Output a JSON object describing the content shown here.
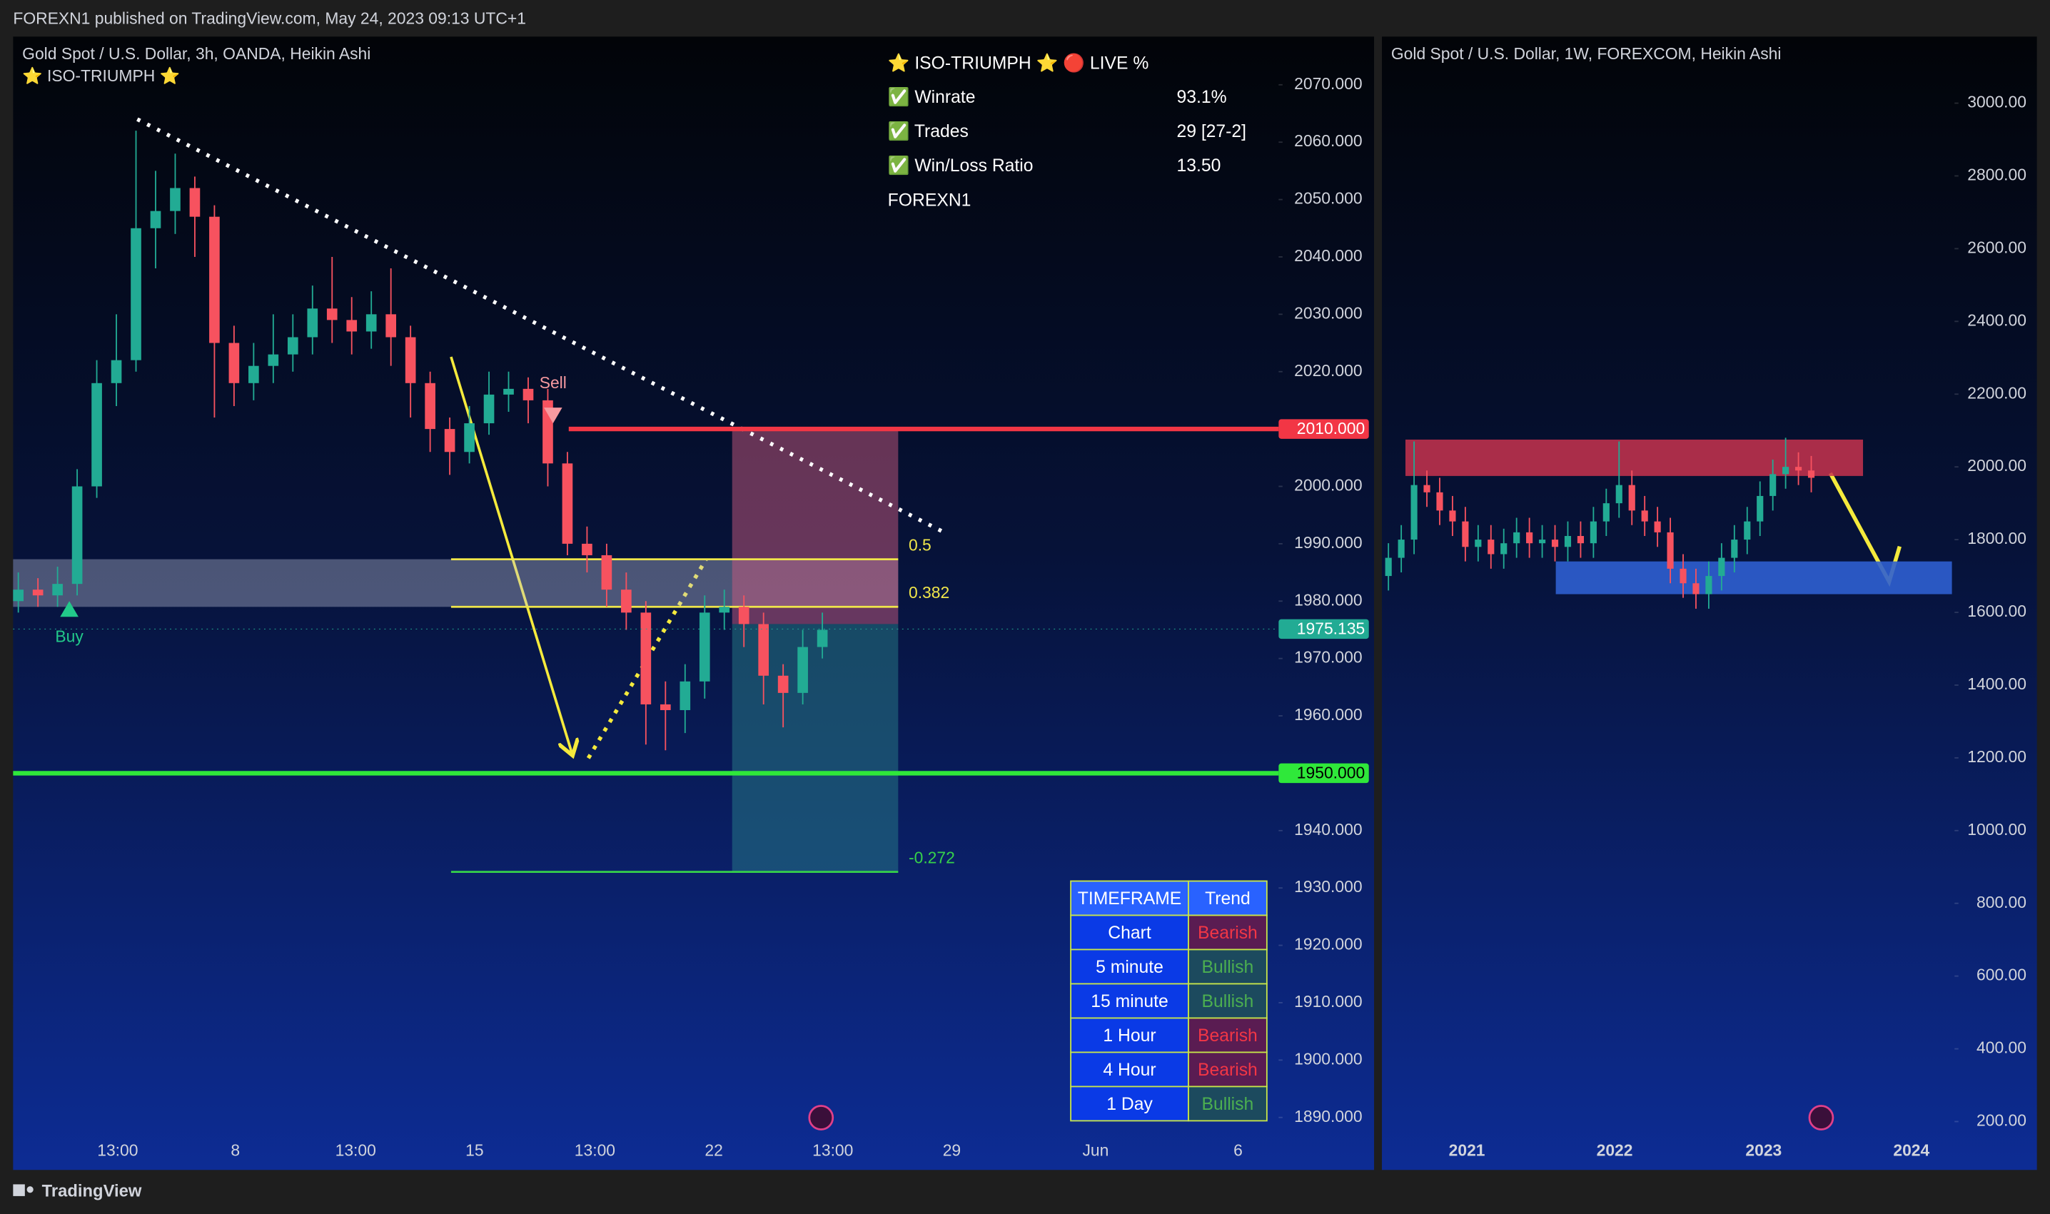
{
  "header": {
    "text": "FOREXN1 published on TradingView.com, May 24, 2023 09:13 UTC+1"
  },
  "footer": {
    "brand": "TradingView"
  },
  "indicator_panel": {
    "title": "⭐ ISO-TRIUMPH ⭐  🔴 LIVE %",
    "rows": [
      {
        "label": "✅ Winrate",
        "value": "93.1%"
      },
      {
        "label": "✅ Trades",
        "value": "29 [27-2]"
      },
      {
        "label": "✅ Win/Loss Ratio",
        "value": "13.50"
      }
    ],
    "footer": "FOREXN1"
  },
  "trend_table": {
    "header": [
      "TIMEFRAME",
      "Trend"
    ],
    "rows": [
      {
        "timeframe": "Chart",
        "trend": "Bearish",
        "color": "#f23645",
        "bg": "#5a1c52"
      },
      {
        "timeframe": "5 minute",
        "trend": "Bullish",
        "color": "#4caf50",
        "bg": "#1c4a5e"
      },
      {
        "timeframe": "15 minute",
        "trend": "Bullish",
        "color": "#4caf50",
        "bg": "#1c4a5e"
      },
      {
        "timeframe": "1 Hour",
        "trend": "Bearish",
        "color": "#f23645",
        "bg": "#5a1c52"
      },
      {
        "timeframe": "4 Hour",
        "trend": "Bearish",
        "color": "#f23645",
        "bg": "#5a1c52"
      },
      {
        "timeframe": "1 Day",
        "trend": "Bullish",
        "color": "#4caf50",
        "bg": "#1c4a5e"
      }
    ]
  },
  "chart_data": [
    {
      "type": "candlestick",
      "title": "Gold Spot / U.S. Dollar, 3h, OANDA, Heikin Ashi",
      "indicator": "⭐ ISO-TRIUMPH ⭐",
      "up_color": "#22ab94",
      "down_color": "#f7525f",
      "xtick_labels": [
        "13:00",
        "8",
        "13:00",
        "15",
        "13:00",
        "22",
        "13:00",
        "29",
        "Jun",
        "6"
      ],
      "ylim": [
        1887,
        2078.4
      ],
      "yticks": [
        {
          "value": 2070,
          "label": "2070.000"
        },
        {
          "value": 2060,
          "label": "2060.000"
        },
        {
          "value": 2050,
          "label": "2050.000"
        },
        {
          "value": 2040,
          "label": "2040.000"
        },
        {
          "value": 2030,
          "label": "2030.000"
        },
        {
          "value": 2020,
          "label": "2020.000"
        },
        {
          "value": 2000,
          "label": "2000.000"
        },
        {
          "value": 1990,
          "label": "1990.000"
        },
        {
          "value": 1980,
          "label": "1980.000"
        },
        {
          "value": 1970,
          "label": "1970.000"
        },
        {
          "value": 1960,
          "label": "1960.000"
        },
        {
          "value": 1940,
          "label": "1940.000"
        },
        {
          "value": 1930,
          "label": "1930.000"
        },
        {
          "value": 1920,
          "label": "1920.000"
        },
        {
          "value": 1910,
          "label": "1910.000"
        },
        {
          "value": 1900,
          "label": "1900.000"
        },
        {
          "value": 1890,
          "label": "1890.000"
        }
      ],
      "candles": [
        [
          1980,
          1985,
          1978,
          1982
        ],
        [
          1982,
          1984,
          1979,
          1981
        ],
        [
          1981,
          1986,
          1979,
          1983
        ],
        [
          1983,
          2003,
          1981,
          2000
        ],
        [
          2000,
          2022,
          1998,
          2018
        ],
        [
          2018,
          2030,
          2014,
          2022
        ],
        [
          2022,
          2062,
          2020,
          2045
        ],
        [
          2045,
          2055,
          2038,
          2048
        ],
        [
          2048,
          2058,
          2044,
          2052
        ],
        [
          2052,
          2054,
          2040,
          2047
        ],
        [
          2047,
          2049,
          2012,
          2025
        ],
        [
          2025,
          2028,
          2014,
          2018
        ],
        [
          2018,
          2025,
          2015,
          2021
        ],
        [
          2021,
          2030,
          2018,
          2023
        ],
        [
          2023,
          2030,
          2020,
          2026
        ],
        [
          2026,
          2035,
          2023,
          2031
        ],
        [
          2031,
          2040,
          2025,
          2029
        ],
        [
          2029,
          2033,
          2023,
          2027
        ],
        [
          2027,
          2034,
          2024,
          2030
        ],
        [
          2030,
          2038,
          2021,
          2026
        ],
        [
          2026,
          2028,
          2012,
          2018
        ],
        [
          2018,
          2020,
          2006,
          2010
        ],
        [
          2010,
          2012,
          2002,
          2006
        ],
        [
          2006,
          2014,
          2004,
          2011
        ],
        [
          2011,
          2020,
          2009,
          2016
        ],
        [
          2016,
          2020,
          2013,
          2017
        ],
        [
          2017,
          2019,
          2011,
          2015
        ],
        [
          2015,
          2017,
          2000,
          2004
        ],
        [
          2004,
          2006,
          1988,
          1990
        ],
        [
          1990,
          1993,
          1985,
          1988
        ],
        [
          1988,
          1990,
          1979,
          1982
        ],
        [
          1982,
          1985,
          1975,
          1978
        ],
        [
          1978,
          1980,
          1955,
          1962
        ],
        [
          1962,
          1966,
          1954,
          1961
        ],
        [
          1961,
          1969,
          1957,
          1966
        ],
        [
          1966,
          1981,
          1963,
          1978
        ],
        [
          1978,
          1982,
          1975,
          1979
        ],
        [
          1979,
          1981,
          1972,
          1976
        ],
        [
          1976,
          1978,
          1962,
          1967
        ],
        [
          1967,
          1969,
          1958,
          1964
        ],
        [
          1964,
          1975,
          1962,
          1972
        ],
        [
          1972,
          1978,
          1970,
          1975
        ]
      ],
      "price_levels": [
        {
          "value": 2010,
          "label": "2010.000",
          "color": "#f23645"
        },
        {
          "value": 1950,
          "label": "1950.000",
          "color": "#2fe83a"
        },
        {
          "value": 1975.135,
          "label": "1975.135",
          "color": "#22ab94"
        }
      ],
      "fib_levels": [
        {
          "value": 1987.3,
          "label": "0.5",
          "color": "#f0e64a"
        },
        {
          "value": 1979,
          "label": "0.382",
          "color": "#f0e64a"
        },
        {
          "value": 1932.8,
          "label": "-0.272",
          "color": "#36d24a"
        }
      ],
      "zones": [
        {
          "from": 1979,
          "to": 1987.3,
          "color": "rgba(190,195,215,0.38)"
        },
        {
          "from": 1976,
          "to": 2010,
          "color": "rgba(200,90,125,0.5)"
        },
        {
          "from": 1932.8,
          "to": 1976,
          "color": "rgba(40,125,135,0.5)"
        }
      ],
      "signals": [
        {
          "label": "Buy",
          "value": 1980,
          "color": "#22c98a"
        },
        {
          "label": "Sell",
          "value": 2011,
          "color": "#f79aa0"
        }
      ],
      "trendline": [
        2064,
        1992
      ]
    },
    {
      "type": "candlestick",
      "title": "Gold Spot / U.S. Dollar, 1W, FOREXCOM, Heikin Ashi",
      "up_color": "#22ab94",
      "down_color": "#f7525f",
      "xtick_labels": [
        "2021",
        "2022",
        "2023",
        "2024"
      ],
      "ylim": [
        164,
        3183
      ],
      "yticks": [
        {
          "value": 3000,
          "label": "3000.00"
        },
        {
          "value": 2800,
          "label": "2800.00"
        },
        {
          "value": 2600,
          "label": "2600.00"
        },
        {
          "value": 2400,
          "label": "2400.00"
        },
        {
          "value": 2200,
          "label": "2200.00"
        },
        {
          "value": 2000,
          "label": "2000.00"
        },
        {
          "value": 1800,
          "label": "1800.00"
        },
        {
          "value": 1600,
          "label": "1600.00"
        },
        {
          "value": 1400,
          "label": "1400.00"
        },
        {
          "value": 1200,
          "label": "1200.00"
        },
        {
          "value": 1000,
          "label": "1000.00"
        },
        {
          "value": 800,
          "label": "800.00"
        },
        {
          "value": 600,
          "label": "600.00"
        },
        {
          "value": 400,
          "label": "400.00"
        },
        {
          "value": 200,
          "label": "200.00"
        }
      ],
      "candles": [
        [
          1700,
          1790,
          1660,
          1750
        ],
        [
          1750,
          1840,
          1710,
          1800
        ],
        [
          1800,
          2070,
          1760,
          1950
        ],
        [
          1950,
          1990,
          1890,
          1930
        ],
        [
          1930,
          1970,
          1840,
          1880
        ],
        [
          1880,
          1920,
          1810,
          1850
        ],
        [
          1850,
          1890,
          1740,
          1780
        ],
        [
          1780,
          1840,
          1740,
          1800
        ],
        [
          1800,
          1840,
          1720,
          1760
        ],
        [
          1760,
          1830,
          1720,
          1790
        ],
        [
          1790,
          1860,
          1750,
          1820
        ],
        [
          1820,
          1860,
          1750,
          1790
        ],
        [
          1790,
          1840,
          1750,
          1800
        ],
        [
          1800,
          1840,
          1740,
          1780
        ],
        [
          1780,
          1850,
          1740,
          1810
        ],
        [
          1810,
          1850,
          1750,
          1790
        ],
        [
          1790,
          1890,
          1750,
          1850
        ],
        [
          1850,
          1940,
          1810,
          1900
        ],
        [
          1900,
          2070,
          1860,
          1950
        ],
        [
          1950,
          1990,
          1840,
          1880
        ],
        [
          1880,
          1920,
          1810,
          1850
        ],
        [
          1850,
          1890,
          1780,
          1820
        ],
        [
          1820,
          1860,
          1680,
          1720
        ],
        [
          1720,
          1760,
          1640,
          1680
        ],
        [
          1680,
          1720,
          1610,
          1650
        ],
        [
          1650,
          1740,
          1610,
          1700
        ],
        [
          1700,
          1790,
          1660,
          1750
        ],
        [
          1750,
          1840,
          1710,
          1800
        ],
        [
          1800,
          1890,
          1760,
          1850
        ],
        [
          1850,
          1960,
          1810,
          1920
        ],
        [
          1920,
          2020,
          1880,
          1980
        ],
        [
          1980,
          2080,
          1940,
          2000
        ],
        [
          2000,
          2040,
          1950,
          1990
        ],
        [
          1990,
          2030,
          1930,
          1970
        ]
      ],
      "zones": [
        {
          "from": 1975,
          "to": 2075,
          "color": "rgba(200,50,77,0.85)"
        },
        {
          "from": 1650,
          "to": 1740,
          "color": "rgba(47,95,208,0.9)"
        }
      ]
    }
  ]
}
